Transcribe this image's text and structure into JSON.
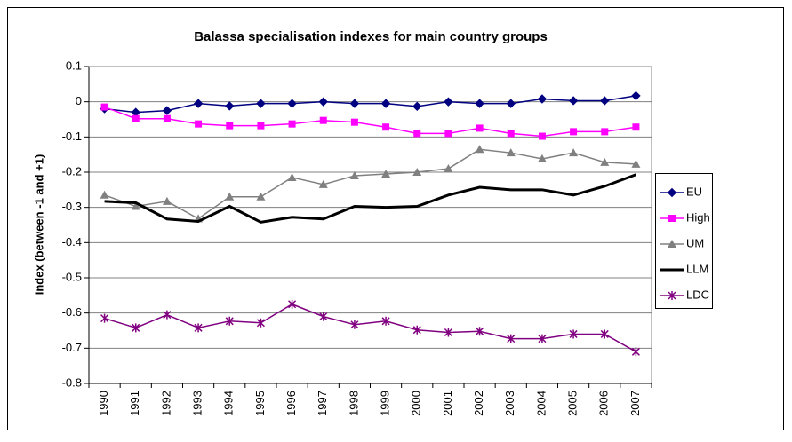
{
  "chart_data": {
    "type": "line",
    "title": "Balassa specialisation indexes for main country groups",
    "y_label": "Index (between -1 and +1)",
    "categories": [
      "1990",
      "1991",
      "1992",
      "1993",
      "1994",
      "1995",
      "1996",
      "1997",
      "1998",
      "1999",
      "2000",
      "2001",
      "2002",
      "2003",
      "2004",
      "2005",
      "2006",
      "2007"
    ],
    "series": [
      {
        "name": "EU",
        "color": "#000080",
        "marker": "diamond",
        "values": [
          -0.02,
          -0.03,
          -0.025,
          -0.005,
          -0.012,
          -0.005,
          -0.005,
          0,
          -0.005,
          -0.005,
          -0.013,
          0,
          -0.005,
          -0.005,
          0.008,
          0.003,
          0.003,
          0.017
        ]
      },
      {
        "name": "High",
        "color": "#ff00ff",
        "marker": "square",
        "values": [
          -0.015,
          -0.048,
          -0.048,
          -0.063,
          -0.068,
          -0.068,
          -0.063,
          -0.053,
          -0.058,
          -0.072,
          -0.09,
          -0.09,
          -0.075,
          -0.09,
          -0.098,
          -0.085,
          -0.085,
          -0.072
        ]
      },
      {
        "name": "UM",
        "color": "#808080",
        "marker": "triangle",
        "values": [
          -0.265,
          -0.297,
          -0.283,
          -0.332,
          -0.27,
          -0.27,
          -0.215,
          -0.235,
          -0.21,
          -0.205,
          -0.2,
          -0.19,
          -0.135,
          -0.145,
          -0.162,
          -0.145,
          -0.172,
          -0.177
        ]
      },
      {
        "name": "LLM",
        "color": "#000000",
        "marker": "none",
        "values": [
          -0.283,
          -0.287,
          -0.333,
          -0.34,
          -0.297,
          -0.342,
          -0.328,
          -0.333,
          -0.297,
          -0.3,
          -0.297,
          -0.265,
          -0.243,
          -0.25,
          -0.25,
          -0.265,
          -0.24,
          -0.207
        ]
      },
      {
        "name": "LDC",
        "color": "#800080",
        "marker": "asterisk",
        "values": [
          -0.615,
          -0.642,
          -0.605,
          -0.642,
          -0.623,
          -0.628,
          -0.575,
          -0.61,
          -0.633,
          -0.623,
          -0.648,
          -0.655,
          -0.652,
          -0.673,
          -0.673,
          -0.66,
          -0.66,
          -0.71
        ]
      }
    ],
    "ylim": [
      -0.8,
      0.1
    ],
    "yticks": [
      -0.8,
      -0.7,
      -0.6,
      -0.5,
      -0.4,
      -0.3,
      -0.2,
      -0.1,
      0,
      0.1
    ],
    "grid": true,
    "legend": "right"
  }
}
